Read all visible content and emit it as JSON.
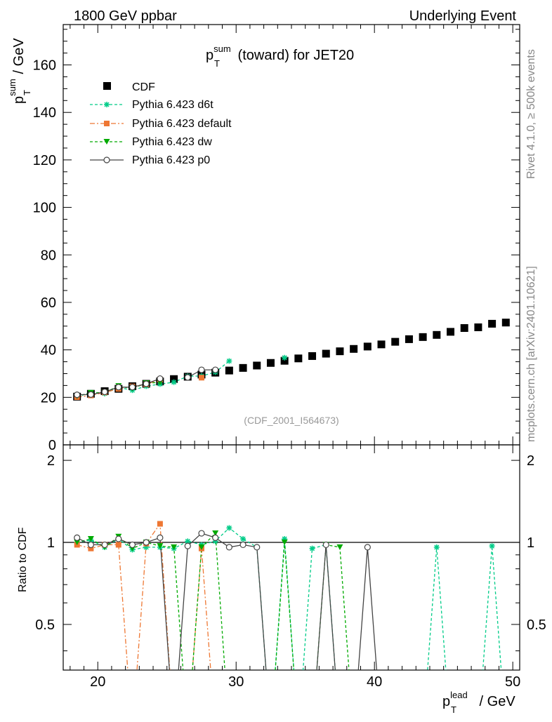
{
  "header": {
    "left": "1800 GeV ppbar",
    "right": "Underlying Event"
  },
  "side": {
    "rivet": "Rivet 4.1.0, ≥ 500k events",
    "mcplots": "mcplots.cern.ch [arXiv:2401.10621]"
  },
  "chart_data": {
    "type": "scatter",
    "title": {
      "sym": "p",
      "sup": "sum",
      "sub": "T",
      "rest": " (toward) for JET20"
    },
    "watermark": "(CDF_2001_I564673)",
    "xlabel": {
      "sym": "p",
      "sup": "lead",
      "sub": "T",
      "rest": " / GeV"
    },
    "ylabel": {
      "sym": "p",
      "sup": "sum",
      "sub": "T",
      "rest": " / GeV"
    },
    "ratio_ylabel": "Ratio to CDF",
    "xlim": [
      17.5,
      50.5
    ],
    "ylim": [
      0,
      177
    ],
    "ratio_ylim": [
      0.34,
      2.28
    ],
    "x_ticks": [
      20,
      30,
      40,
      50
    ],
    "y_ticks": [
      0,
      20,
      40,
      60,
      80,
      100,
      120,
      140,
      160
    ],
    "ratio_ticks": [
      0.5,
      1,
      2
    ],
    "legend": [
      "CDF",
      "Pythia 6.423 d6t",
      "Pythia 6.423 default",
      "Pythia 6.423 dw",
      "Pythia 6.423 p0"
    ],
    "series": [
      {
        "name": "CDF",
        "color": "#000000",
        "x": [
          18.5,
          19.5,
          20.5,
          21.5,
          22.5,
          23.5,
          24.5,
          25.5,
          26.5,
          27.5,
          28.5,
          29.5,
          30.5,
          31.5,
          32.5,
          33.5,
          34.5,
          35.5,
          36.5,
          37.5,
          38.5,
          39.5,
          40.5,
          41.5,
          42.5,
          43.5,
          44.5,
          45.5,
          46.5,
          47.5,
          48.5,
          49.5
        ],
        "y": [
          20.3,
          21.5,
          22.6,
          23.6,
          24.7,
          25.7,
          26.7,
          27.7,
          28.7,
          29.6,
          30.4,
          31.3,
          32.4,
          33.4,
          34.5,
          35.4,
          36.4,
          37.4,
          38.4,
          39.4,
          40.4,
          41.4,
          42.3,
          43.4,
          44.5,
          45.4,
          46.3,
          47.6,
          49.2,
          49.5,
          51.0,
          51.5
        ]
      },
      {
        "name": "Pythia 6.423 d6t",
        "color": "#00cc88",
        "dash": "4,3",
        "marker": "star",
        "x": [
          18.5,
          19.5,
          20.5,
          21.5,
          22.5,
          23.5,
          24.5,
          25.5,
          26.5,
          27.5,
          28.5,
          29.5,
          30.5,
          31.5,
          32.5,
          33.5,
          34.5,
          35.5,
          36.5,
          37.5,
          38.5,
          39.5,
          40.5,
          41.5,
          42.5,
          43.5,
          44.5,
          45.5,
          46.5,
          47.5,
          48.5,
          49.5
        ],
        "y": [
          20.3,
          22.0,
          21.6,
          24.2,
          23.0,
          24.7,
          25.6,
          26.4,
          28.9,
          29.0,
          30.6,
          35.3,
          null,
          null,
          null,
          36.7,
          null,
          null,
          null,
          null,
          null,
          null,
          null,
          null,
          null,
          null,
          null,
          null,
          null,
          null,
          null,
          null
        ],
        "ratio": [
          1.0,
          1.02,
          0.96,
          1.03,
          0.94,
          0.96,
          0.96,
          0.95,
          1.01,
          0.98,
          1.01,
          1.13,
          1.03,
          0.96,
          null,
          1.03,
          null,
          0.95,
          0.98,
          null,
          null,
          null,
          null,
          null,
          null,
          null,
          0.96,
          null,
          null,
          null,
          0.97,
          null
        ]
      },
      {
        "name": "Pythia 6.423 default",
        "color": "#ee7733",
        "dash": "7,3,2,3",
        "marker": "square",
        "x": [
          18.5,
          19.5,
          20.5,
          21.5,
          22.5,
          23.5,
          24.5,
          25.5,
          26.5,
          27.5,
          28.5,
          29.5,
          30.5,
          31.5,
          32.5,
          33.5,
          34.5,
          35.5,
          36.5,
          37.5,
          38.5,
          39.5,
          40.5,
          41.5,
          42.5,
          43.5,
          44.5,
          45.5,
          46.5,
          47.5,
          48.5,
          49.5
        ],
        "y": [
          20.1,
          20.8,
          22.1,
          23.6,
          24.6,
          25.5,
          27.5,
          null,
          null,
          28.3,
          null,
          null,
          null,
          null,
          null,
          null,
          null,
          null,
          null,
          null,
          null,
          null,
          null,
          null,
          null,
          null,
          null,
          null,
          null,
          null,
          null,
          null
        ],
        "ratio": [
          0.98,
          0.95,
          0.98,
          0.98,
          null,
          0.99,
          1.17,
          null,
          null,
          0.95,
          null,
          null,
          null,
          null,
          null,
          null,
          null,
          null,
          null,
          null,
          null,
          null,
          null,
          null,
          null,
          null,
          null,
          null,
          null,
          null,
          null,
          null
        ]
      },
      {
        "name": "Pythia 6.423 dw",
        "color": "#00aa00",
        "dash": "4,3",
        "marker": "triangle",
        "x": [
          18.5,
          19.5,
          20.5,
          21.5,
          22.5,
          23.5,
          24.5,
          25.5,
          26.5,
          27.5,
          28.5,
          29.5,
          30.5,
          31.5,
          32.5,
          33.5,
          34.5,
          35.5,
          36.5,
          37.5,
          38.5,
          39.5,
          40.5,
          41.5,
          42.5,
          43.5,
          44.5,
          45.5,
          46.5,
          47.5,
          48.5,
          49.5
        ],
        "y": [
          20.5,
          21.9,
          22.0,
          24.8,
          23.7,
          26.0,
          26.3,
          null,
          null,
          null,
          null,
          null,
          null,
          null,
          null,
          null,
          null,
          null,
          null,
          null,
          null,
          null,
          null,
          null,
          null,
          null,
          null,
          null,
          null,
          null,
          null,
          null
        ],
        "ratio": [
          1.0,
          1.03,
          0.96,
          1.05,
          0.95,
          1.0,
          0.97,
          0.96,
          null,
          0.96,
          1.08,
          null,
          null,
          null,
          null,
          1.0,
          null,
          null,
          0.98,
          0.96,
          null,
          null,
          null,
          null,
          null,
          null,
          null,
          null,
          null,
          null,
          null,
          null
        ]
      },
      {
        "name": "Pythia 6.423 p0",
        "color": "#444444",
        "dash": "",
        "marker": "circle",
        "x": [
          18.5,
          19.5,
          20.5,
          21.5,
          22.5,
          23.5,
          24.5,
          25.5,
          26.5,
          27.5,
          28.5,
          29.5,
          30.5,
          31.5,
          32.5,
          33.5,
          34.5,
          35.5,
          36.5,
          37.5,
          38.5,
          39.5,
          40.5,
          41.5,
          42.5,
          43.5,
          44.5,
          45.5,
          46.5,
          47.5,
          48.5,
          49.5
        ],
        "y": [
          21.1,
          21.2,
          22.3,
          24.3,
          24.3,
          25.7,
          27.9,
          null,
          28.4,
          31.6,
          31.6,
          null,
          null,
          null,
          null,
          null,
          null,
          null,
          null,
          null,
          null,
          null,
          null,
          null,
          null,
          null,
          null,
          null,
          null,
          null,
          null,
          null
        ],
        "ratio": [
          1.04,
          0.98,
          0.98,
          1.03,
          0.98,
          1.0,
          1.04,
          null,
          0.97,
          1.08,
          1.04,
          0.96,
          0.98,
          0.96,
          null,
          null,
          null,
          null,
          0.98,
          null,
          null,
          0.96,
          null,
          null,
          null,
          null,
          null,
          null,
          null,
          null,
          null,
          null
        ]
      }
    ]
  }
}
